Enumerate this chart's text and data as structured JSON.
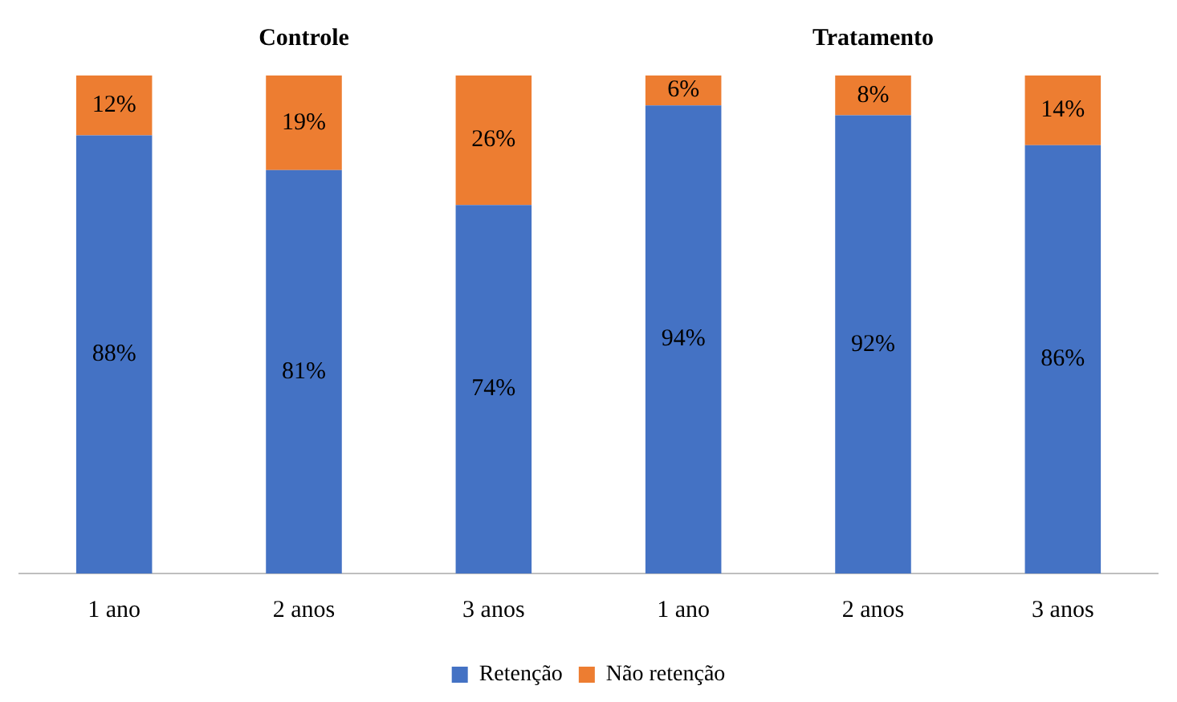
{
  "chart_data": {
    "type": "bar",
    "stacked": true,
    "categories": [
      "1 ano",
      "2 anos",
      "3 anos",
      "1 ano",
      "2 anos",
      "3 anos"
    ],
    "series": [
      {
        "name": "Retenção",
        "color": "#4472c4",
        "values": [
          88,
          81,
          74,
          94,
          92,
          86
        ],
        "value_labels": [
          "88%",
          "81%",
          "74%",
          "94%",
          "92%",
          "86%"
        ]
      },
      {
        "name": "Não retenção",
        "color": "#ed7d31",
        "values": [
          12,
          19,
          26,
          6,
          8,
          14
        ],
        "value_labels": [
          "12%",
          "19%",
          "26%",
          "6%",
          "8%",
          "14%"
        ]
      }
    ],
    "ylim": [
      0,
      100
    ],
    "tick_labels": "x",
    "grid": false,
    "legend": "bottom",
    "annotations": [
      "Controle",
      "Tratamento"
    ]
  }
}
